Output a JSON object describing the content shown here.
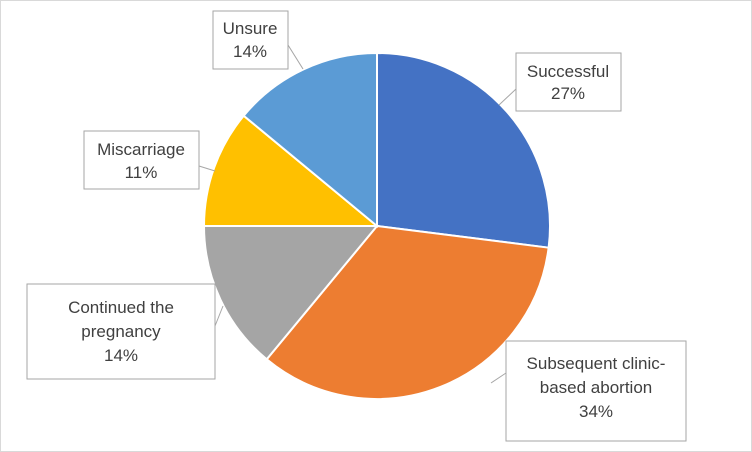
{
  "chart_data": {
    "type": "pie",
    "title": "",
    "slices": [
      {
        "name": "Successful",
        "label_lines": [
          "Successful",
          "27%"
        ],
        "value": 27,
        "color": "#4472C4"
      },
      {
        "name": "Subsequent clinic-based abortion",
        "label_lines": [
          "Subsequent clinic-",
          "based abortion",
          "34%"
        ],
        "value": 34,
        "color": "#ED7D31"
      },
      {
        "name": "Continued the pregnancy",
        "label_lines": [
          "Continued the",
          "pregnancy",
          "14%"
        ],
        "value": 14,
        "color": "#A5A5A5"
      },
      {
        "name": "Miscarriage",
        "label_lines": [
          "Miscarriage",
          "11%"
        ],
        "value": 11,
        "color": "#FFC000"
      },
      {
        "name": "Unsure",
        "label_lines": [
          "Unsure",
          "14%"
        ],
        "value": 14,
        "color": "#5B9BD5"
      }
    ],
    "data_labels": "callouts",
    "legend": "none",
    "start_angle": "12 o'clock",
    "direction": "clockwise"
  }
}
